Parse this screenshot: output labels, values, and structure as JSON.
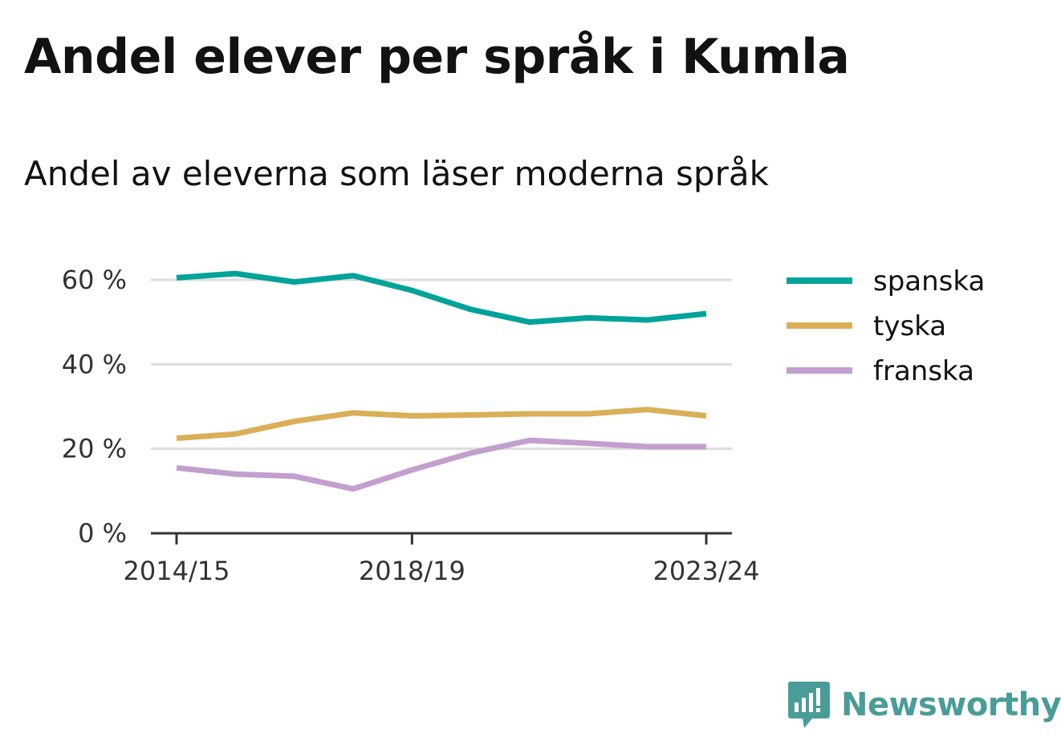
{
  "title": "Andel elever per språk i Kumla",
  "subtitle": "Andel av eleverna som läser moderna språk",
  "brand": {
    "name": "Newsworthy",
    "icon": "newsworthy-logo-icon",
    "color": "#4a9c98"
  },
  "chart_data": {
    "type": "line",
    "x": [
      "2014/15",
      "2015/16",
      "2016/17",
      "2017/18",
      "2018/19",
      "2019/20",
      "2020/21",
      "2021/22",
      "2022/23",
      "2023/24"
    ],
    "x_tick_labels": [
      "2014/15",
      "2018/19",
      "2023/24"
    ],
    "y_ticks": [
      0,
      20,
      40,
      60
    ],
    "y_tick_labels": [
      "0 %",
      "20 %",
      "40 %",
      "60 %"
    ],
    "ylim": [
      0,
      60
    ],
    "y_unit": "%",
    "grid": true,
    "legend_position": "right",
    "series": [
      {
        "name": "spanska",
        "color": "#00a39a",
        "values": [
          60.5,
          61.5,
          59.5,
          61.0,
          57.5,
          53.0,
          50.0,
          51.0,
          50.5,
          52.0
        ]
      },
      {
        "name": "tyska",
        "color": "#dbaf58",
        "values": [
          22.5,
          23.5,
          26.5,
          28.5,
          27.8,
          28.0,
          28.3,
          28.3,
          29.3,
          27.8
        ]
      },
      {
        "name": "franska",
        "color": "#c39fcf",
        "values": [
          15.5,
          14.0,
          13.5,
          10.5,
          15.0,
          19.0,
          22.0,
          21.3,
          20.5,
          20.5
        ]
      }
    ]
  }
}
